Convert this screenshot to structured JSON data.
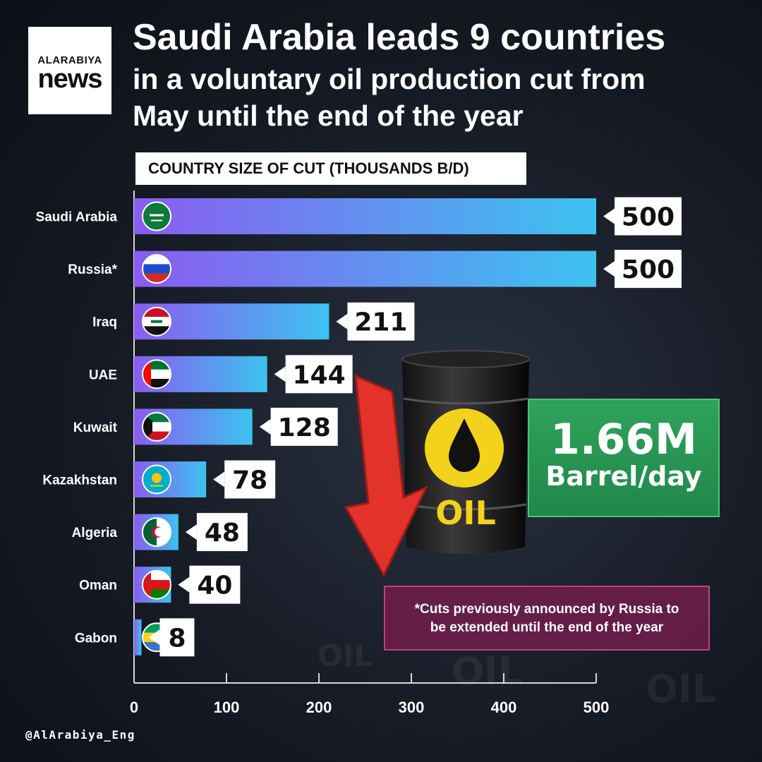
{
  "brand": {
    "logo_line1": "ALARABIYA",
    "logo_line2": "news",
    "handle": "@AlArabiya_Eng"
  },
  "title": {
    "line1": "Saudi Arabia leads 9 countries",
    "line2": "in a voluntary oil production cut from",
    "line3": "May until the end of the year"
  },
  "subtitle": "COUNTRY SIZE OF CUT (THOUSANDS B/D)",
  "total": {
    "value": "1.66M",
    "unit": "Barrel/day"
  },
  "note": {
    "line1": "*Cuts previously announced by Russia to",
    "line2": "be extended until the end of the year"
  },
  "barrel": {
    "label": "OIL"
  },
  "colors": {
    "bar_start": "#8a5cf0",
    "bar_end": "#3cc3f0",
    "total_box": "#27974f",
    "note_box": "#7a1f52",
    "arrow": "#e2322a",
    "barrel_text": "#f2d21b"
  },
  "chart_data": {
    "type": "bar",
    "orientation": "horizontal",
    "categories": [
      "Saudi Arabia",
      "Russia*",
      "Iraq",
      "UAE",
      "Kuwait",
      "Kazakhstan",
      "Algeria",
      "Oman",
      "Gabon"
    ],
    "values": [
      500,
      500,
      211,
      144,
      128,
      78,
      48,
      40,
      8
    ],
    "flags": [
      "saudi-flag-icon",
      "russia-flag-icon",
      "iraq-flag-icon",
      "uae-flag-icon",
      "kuwait-flag-icon",
      "kazakhstan-flag-icon",
      "algeria-flag-icon",
      "oman-flag-icon",
      "gabon-flag-icon"
    ],
    "xlim": [
      0,
      500
    ],
    "xticks": [
      0,
      100,
      200,
      300,
      400,
      500
    ],
    "title": "COUNTRY SIZE OF CUT (THOUSANDS B/D)",
    "grid": false
  }
}
